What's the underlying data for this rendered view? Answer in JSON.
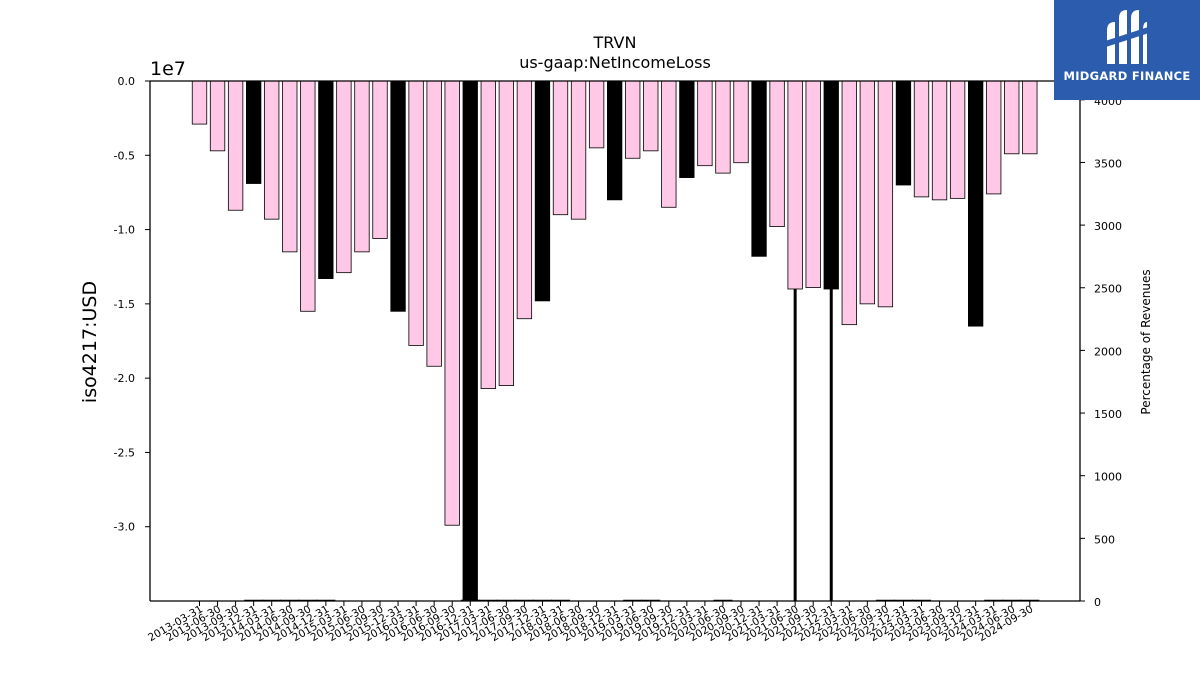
{
  "chart_data": {
    "type": "bar",
    "title": "TRVN",
    "subtitle": "us-gaap:NetIncomeLoss",
    "ylabel": "iso4217:USD",
    "y_offset_label": "1e7",
    "y2label": "Percentage of Revenues",
    "ylim": [
      -3.5,
      0.0
    ],
    "y_unit_scale": 10000000,
    "y2lim": [
      0,
      4150
    ],
    "yticks": [
      "0.0",
      "-0.5",
      "-1.0",
      "-1.5",
      "-2.0",
      "-2.5",
      "-3.0"
    ],
    "y2ticks": [
      "0",
      "500",
      "1000",
      "1500",
      "2000",
      "2500",
      "3000",
      "3500",
      "4000"
    ],
    "categories": [
      "2013-03-31",
      "2013-06-30",
      "2013-09-30",
      "2013-12-31",
      "2014-03-31",
      "2014-06-30",
      "2014-09-30",
      "2014-12-31",
      "2015-03-31",
      "2015-06-30",
      "2015-09-30",
      "2015-12-31",
      "2016-03-31",
      "2016-06-30",
      "2016-09-30",
      "2016-12-31",
      "2017-03-31",
      "2017-06-30",
      "2017-09-30",
      "2017-12-31",
      "2018-03-31",
      "2018-06-30",
      "2018-09-30",
      "2018-12-31",
      "2019-03-31",
      "2019-06-30",
      "2019-09-30",
      "2019-12-31",
      "2020-03-31",
      "2020-06-30",
      "2020-09-30",
      "2020-12-31",
      "2021-03-31",
      "2021-06-30",
      "2021-09-30",
      "2021-12-31",
      "2022-03-31",
      "2022-06-30",
      "2022-09-30",
      "2022-12-31",
      "2023-03-31",
      "2023-06-30",
      "2023-09-30",
      "2023-12-31",
      "2024-03-31",
      "2024-06-30",
      "2024-09-30"
    ],
    "series": [
      {
        "values": [
          -0.29,
          -0.47,
          -0.87,
          -0.69,
          -0.93,
          -1.15,
          -1.55,
          -1.33,
          -1.29,
          -1.15,
          -1.06,
          -1.55,
          -1.78,
          -1.92,
          -2.99,
          -3.52,
          -2.07,
          -2.05,
          -1.6,
          -1.48,
          -0.9,
          -0.93,
          -0.45,
          -0.8,
          -0.52,
          -0.47,
          -0.85,
          -0.65,
          -0.57,
          -0.62,
          -0.55,
          -1.18,
          -0.98,
          -1.4,
          -1.39,
          -1.4,
          -1.64,
          -1.5,
          -1.52,
          -0.7,
          -0.78,
          -0.8,
          -0.79,
          -1.65,
          -0.76,
          -0.49,
          -0.49
        ],
        "annual": [
          false,
          false,
          false,
          true,
          false,
          false,
          false,
          true,
          false,
          false,
          false,
          true,
          false,
          false,
          false,
          true,
          false,
          false,
          false,
          true,
          false,
          false,
          false,
          true,
          false,
          false,
          false,
          true,
          false,
          false,
          false,
          true,
          false,
          false,
          false,
          true,
          false,
          false,
          false,
          true,
          false,
          false,
          false,
          true,
          false,
          false,
          false
        ],
        "pct_of_revenues": [
          null,
          null,
          null,
          10,
          10,
          10,
          10,
          10,
          null,
          null,
          null,
          null,
          null,
          null,
          null,
          10,
          10,
          10,
          10,
          10,
          10,
          null,
          null,
          null,
          10,
          10,
          null,
          null,
          null,
          10,
          null,
          null,
          null,
          null,
          null,
          null,
          null,
          null,
          10,
          10,
          10,
          null,
          null,
          null,
          10,
          10,
          10
        ]
      }
    ],
    "spike_bars": [
      {
        "category": "2021-06-30",
        "value": 4150
      },
      {
        "category": "2021-12-31",
        "value": 4150
      }
    ],
    "colors": {
      "quarterly": "#ffc8e6",
      "annual": "#000000",
      "edge": "#000000"
    }
  },
  "logo": {
    "text": "MIDGARD FINANCE",
    "bg": "#2b5cad"
  }
}
